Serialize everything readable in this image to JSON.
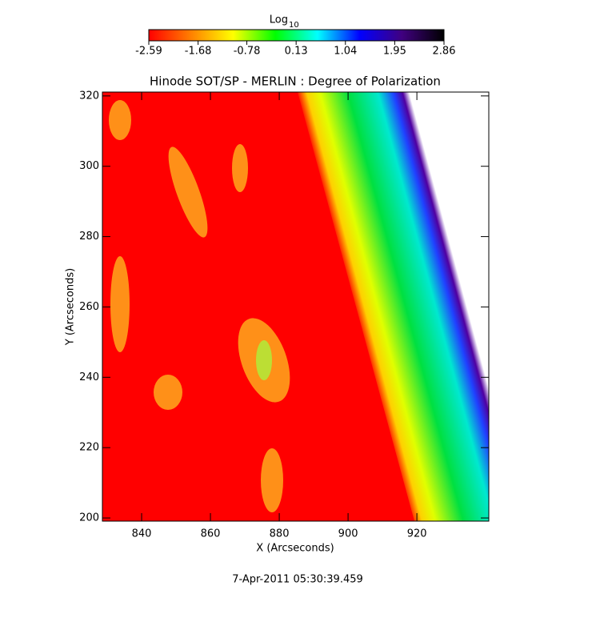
{
  "chart_data": {
    "type": "image",
    "title": "Hinode SOT/SP - MERLIN : Degree of Polarization",
    "x_label": "X (Arcseconds)",
    "y_label": "Y (Arcseconds)",
    "xlim": [
      828.6,
      940.9
    ],
    "xticks": [
      840,
      860,
      880,
      900,
      920
    ],
    "ylim": [
      199.1,
      321.1
    ],
    "yticks": [
      200,
      220,
      240,
      260,
      280,
      300,
      320
    ],
    "colorbar": {
      "label": "Log",
      "label_sub": "10",
      "lim": [
        -2.59,
        2.86
      ],
      "ticks": [
        -2.59,
        -1.68,
        -0.78,
        0.13,
        1.04,
        1.95,
        2.86
      ],
      "colors": [
        "#ff0000",
        "#ff8000",
        "#ffff00",
        "#00ff00",
        "#00ffff",
        "#0000ff",
        "#400080",
        "#000000"
      ]
    },
    "footer": "7-Apr-2011 05:30:39.459"
  }
}
